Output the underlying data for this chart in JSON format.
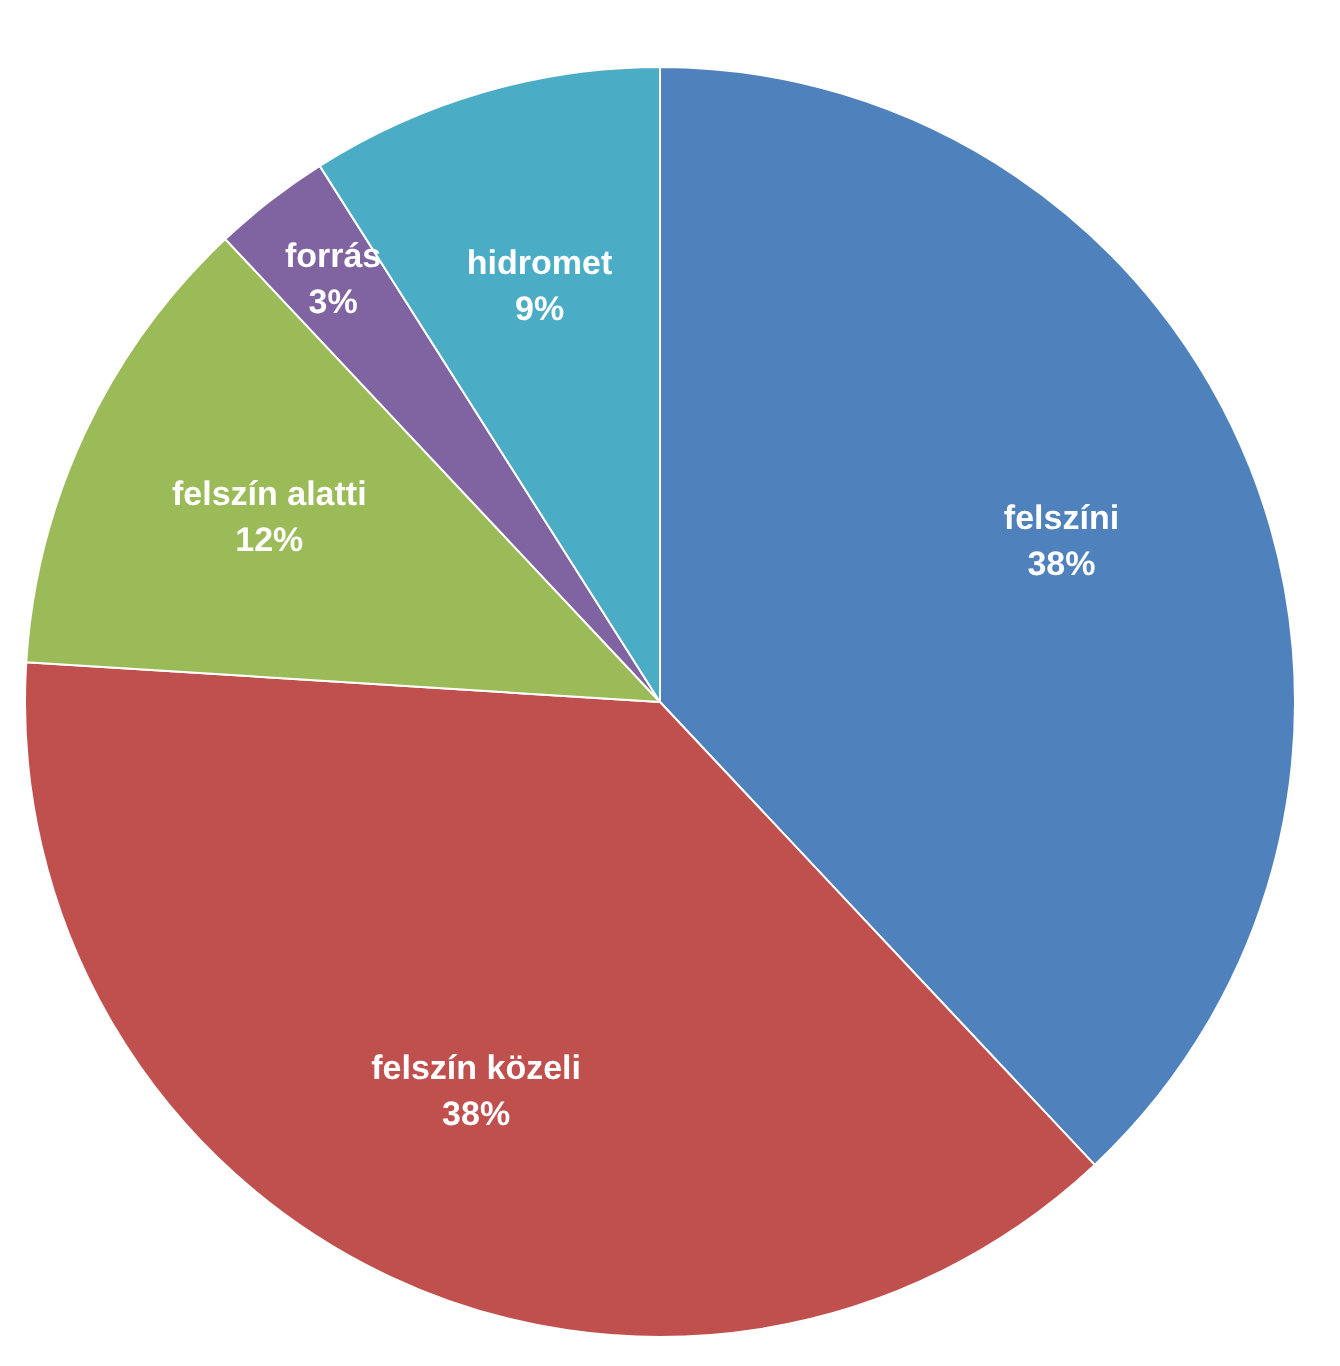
{
  "chart_data": {
    "type": "pie",
    "categories": [
      "felszíni",
      "felszín közeli",
      "felszín alatti",
      "forrás",
      "hidromet"
    ],
    "values": [
      38,
      38,
      12,
      3,
      9
    ],
    "colors": [
      "#4f81bd",
      "#c0504d",
      "#9bbb59",
      "#8064a2",
      "#4bacc6"
    ],
    "value_labels": [
      "38%",
      "38%",
      "12%",
      "3%",
      "9%"
    ]
  }
}
